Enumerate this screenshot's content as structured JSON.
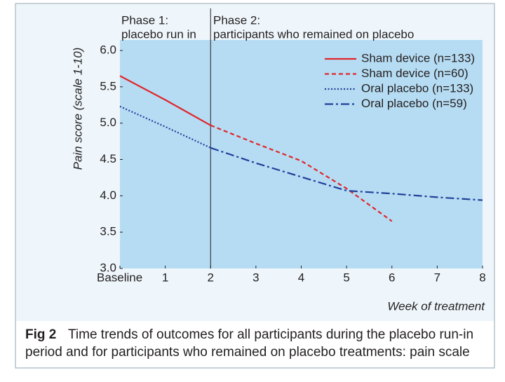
{
  "chart_data": {
    "type": "line",
    "annotations": [
      "Phase 1:",
      "placebo run in",
      "Phase 2:",
      "participants who remained on placebo"
    ],
    "y_label": "Pain score (scale 1-10)",
    "x_label": "Week of treatment",
    "caption_label": "Fig 2",
    "caption": [
      "Time trends of outcomes for all participants during the placebo run-in",
      "period and for participants who remained on placebo treatments: pain scale"
    ],
    "xlim": [
      0,
      8
    ],
    "xticks": [
      {
        "value": 0,
        "label": "Baseline"
      },
      1,
      2,
      3,
      4,
      5,
      6,
      7,
      8
    ],
    "ylim": [
      3,
      6
    ],
    "yticks": [
      {
        "value": 3,
        "label": "3.0"
      },
      3.5,
      {
        "value": 4,
        "label": "4.0"
      },
      4.5,
      {
        "value": 5,
        "label": "5.0"
      },
      5.5,
      {
        "value": 6,
        "label": "6.0"
      }
    ],
    "phase_divider": 2,
    "legend": "upper right",
    "grid": false,
    "series": [
      {
        "name": "Sham device (n=133)",
        "color": "#e0262b",
        "style": "solid",
        "x": [
          0,
          1,
          2
        ],
        "values": [
          5.65,
          5.32,
          4.97
        ]
      },
      {
        "name": "Sham device (n=60)",
        "color": "#e0262b",
        "style": "dashed",
        "x": [
          2,
          3,
          4,
          5,
          6
        ],
        "values": [
          4.97,
          4.72,
          4.48,
          4.1,
          3.65
        ]
      },
      {
        "name": "Oral placebo (n=133)",
        "color": "#1f3f9a",
        "style": "dotted",
        "x": [
          0,
          1,
          2
        ],
        "values": [
          5.23,
          4.95,
          4.66
        ]
      },
      {
        "name": "Oral placebo (n=59)",
        "color": "#1f3f9a",
        "style": "dashdot",
        "x": [
          2,
          3,
          4,
          5,
          6,
          7,
          8
        ],
        "values": [
          4.66,
          4.45,
          4.26,
          4.07,
          4.03,
          3.98,
          3.94
        ]
      }
    ]
  }
}
